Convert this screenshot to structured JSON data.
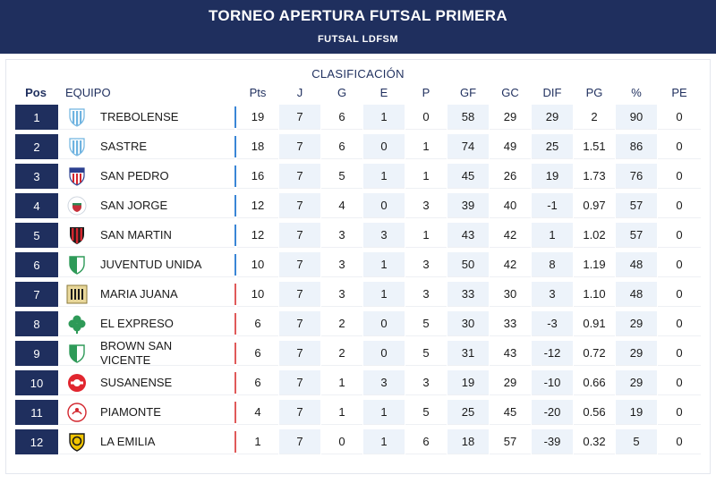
{
  "header": {
    "title": "TORNEO APERTURA FUTSAL PRIMERA",
    "subtitle": "FUTSAL LDFSM"
  },
  "table": {
    "section_title": "CLASIFICACIÓN",
    "columns": {
      "pos": "Pos",
      "team": "EQUIPO",
      "pts": "Pts",
      "j": "J",
      "g": "G",
      "e": "E",
      "p": "P",
      "gf": "GF",
      "gc": "GC",
      "dif": "DIF",
      "pg": "PG",
      "pct": "%",
      "pe": "PE"
    },
    "colors": {
      "header_bg": "#1f2f5e",
      "pos_bg": "#1f2f5e",
      "alt_cell_bg": "#edf3fa",
      "zone_blue": "#3a86d6",
      "zone_red": "#e05a5a"
    },
    "rows": [
      {
        "pos": "1",
        "team": "TREBOLENSE",
        "crest": "shield-light-blue-stripes",
        "zone": "blue",
        "pts": "19",
        "j": "7",
        "g": "6",
        "e": "1",
        "p": "0",
        "gf": "58",
        "gc": "29",
        "dif": "29",
        "pg": "2",
        "pct": "90",
        "pe": "0"
      },
      {
        "pos": "2",
        "team": "SASTRE",
        "crest": "shield-light-blue-stripes",
        "zone": "blue",
        "pts": "18",
        "j": "7",
        "g": "6",
        "e": "0",
        "p": "1",
        "gf": "74",
        "gc": "49",
        "dif": "25",
        "pg": "1.51",
        "pct": "86",
        "pe": "0"
      },
      {
        "pos": "3",
        "team": "SAN PEDRO",
        "crest": "shield-red-white-blue",
        "zone": "blue",
        "pts": "16",
        "j": "7",
        "g": "5",
        "e": "1",
        "p": "1",
        "gf": "45",
        "gc": "26",
        "dif": "19",
        "pg": "1.73",
        "pct": "76",
        "pe": "0"
      },
      {
        "pos": "4",
        "team": "SAN JORGE",
        "crest": "round-red-green",
        "zone": "blue",
        "pts": "12",
        "j": "7",
        "g": "4",
        "e": "0",
        "p": "3",
        "gf": "39",
        "gc": "40",
        "dif": "-1",
        "pg": "0.97",
        "pct": "57",
        "pe": "0"
      },
      {
        "pos": "5",
        "team": "SAN MARTIN",
        "crest": "shield-red-black-stripes",
        "zone": "blue",
        "pts": "12",
        "j": "7",
        "g": "3",
        "e": "3",
        "p": "1",
        "gf": "43",
        "gc": "42",
        "dif": "1",
        "pg": "1.02",
        "pct": "57",
        "pe": "0"
      },
      {
        "pos": "6",
        "team": "JUVENTUD UNIDA",
        "crest": "shield-green-white",
        "zone": "blue",
        "pts": "10",
        "j": "7",
        "g": "3",
        "e": "1",
        "p": "3",
        "gf": "50",
        "gc": "42",
        "dif": "8",
        "pg": "1.19",
        "pct": "48",
        "pe": "0"
      },
      {
        "pos": "7",
        "team": "MARIA JUANA",
        "crest": "square-black-gold",
        "zone": "red",
        "pts": "10",
        "j": "7",
        "g": "3",
        "e": "1",
        "p": "3",
        "gf": "33",
        "gc": "30",
        "dif": "3",
        "pg": "1.10",
        "pct": "48",
        "pe": "0"
      },
      {
        "pos": "8",
        "team": "EL EXPRESO",
        "crest": "clover-green",
        "zone": "red",
        "pts": "6",
        "j": "7",
        "g": "2",
        "e": "0",
        "p": "5",
        "gf": "30",
        "gc": "33",
        "dif": "-3",
        "pg": "0.91",
        "pct": "29",
        "pe": "0"
      },
      {
        "pos": "9",
        "team": "BROWN SAN VICENTE",
        "crest": "shield-green-white",
        "zone": "red",
        "pts": "6",
        "j": "7",
        "g": "2",
        "e": "0",
        "p": "5",
        "gf": "31",
        "gc": "43",
        "dif": "-12",
        "pg": "0.72",
        "pct": "29",
        "pe": "0"
      },
      {
        "pos": "10",
        "team": "SUSANENSE",
        "crest": "round-red-white",
        "zone": "red",
        "pts": "6",
        "j": "7",
        "g": "1",
        "e": "3",
        "p": "3",
        "gf": "19",
        "gc": "29",
        "dif": "-10",
        "pg": "0.66",
        "pct": "29",
        "pe": "0"
      },
      {
        "pos": "11",
        "team": "PIAMONTE",
        "crest": "round-white-red",
        "zone": "red",
        "pts": "4",
        "j": "7",
        "g": "1",
        "e": "1",
        "p": "5",
        "gf": "25",
        "gc": "45",
        "dif": "-20",
        "pg": "0.56",
        "pct": "19",
        "pe": "0"
      },
      {
        "pos": "12",
        "team": "LA EMILIA",
        "crest": "shield-yellow-black",
        "zone": "red",
        "pts": "1",
        "j": "7",
        "g": "0",
        "e": "1",
        "p": "6",
        "gf": "18",
        "gc": "57",
        "dif": "-39",
        "pg": "0.32",
        "pct": "5",
        "pe": "0"
      }
    ]
  }
}
